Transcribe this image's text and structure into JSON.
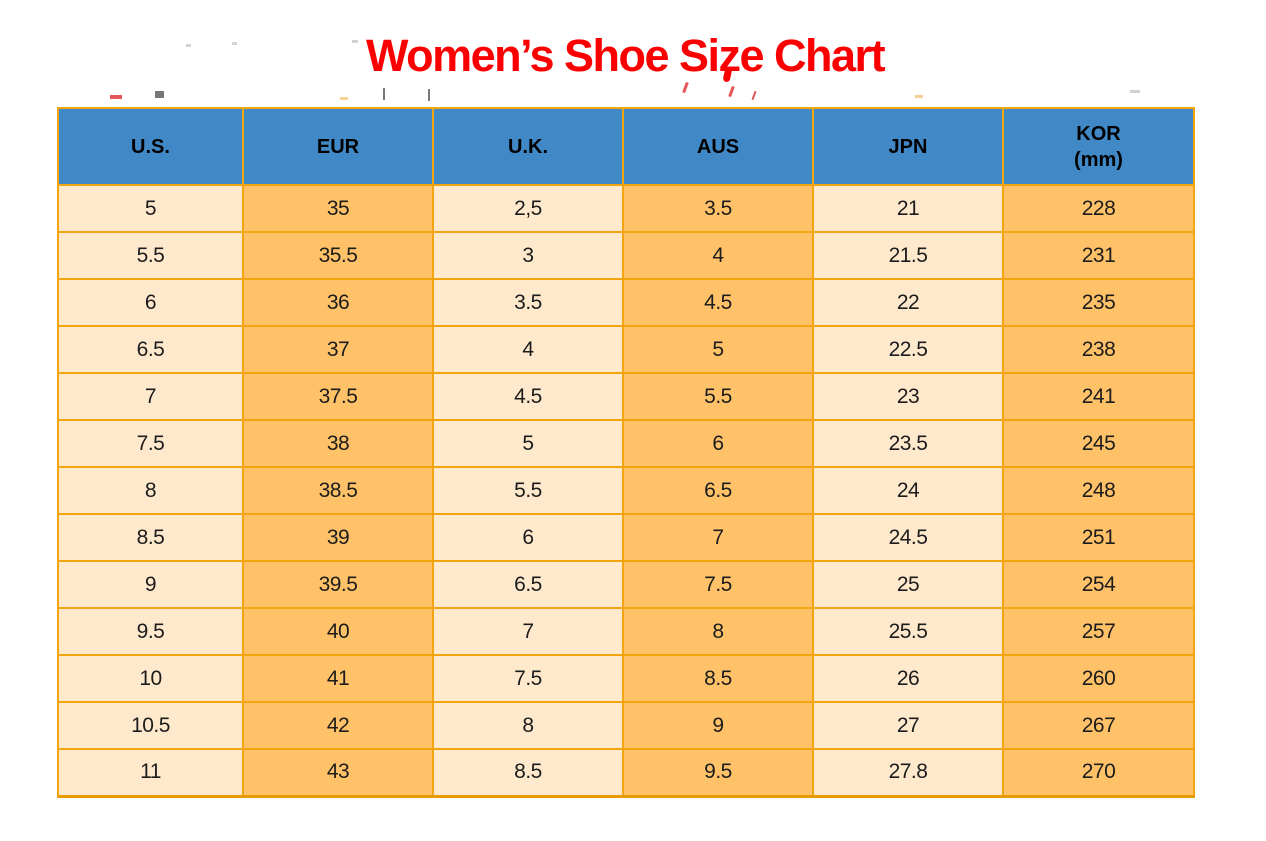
{
  "title": "Women’s Shoe Size Chart",
  "colors": {
    "header_bg": "#4189C6",
    "col_light": "#FFE9CD",
    "col_orange": "#FFC268",
    "border": "#F2A50F",
    "border_dark": "#E99B00",
    "title": "#FB0000"
  },
  "chart_data": {
    "type": "table",
    "title": "Women’s Shoe Size Chart",
    "columns": [
      {
        "label": "U.S.",
        "sub": ""
      },
      {
        "label": "EUR",
        "sub": ""
      },
      {
        "label": "U.K.",
        "sub": ""
      },
      {
        "label": "AUS",
        "sub": ""
      },
      {
        "label": "JPN",
        "sub": ""
      },
      {
        "label": "KOR",
        "sub": "(mm)"
      }
    ],
    "rows": [
      [
        "5",
        "35",
        "2,5",
        "3.5",
        "21",
        "228"
      ],
      [
        "5.5",
        "35.5",
        "3",
        "4",
        "21.5",
        "231"
      ],
      [
        "6",
        "36",
        "3.5",
        "4.5",
        "22",
        "235"
      ],
      [
        "6.5",
        "37",
        "4",
        "5",
        "22.5",
        "238"
      ],
      [
        "7",
        "37.5",
        "4.5",
        "5.5",
        "23",
        "241"
      ],
      [
        "7.5",
        "38",
        "5",
        "6",
        "23.5",
        "245"
      ],
      [
        "8",
        "38.5",
        "5.5",
        "6.5",
        "24",
        "248"
      ],
      [
        "8.5",
        "39",
        "6",
        "7",
        "24.5",
        "251"
      ],
      [
        "9",
        "39.5",
        "6.5",
        "7.5",
        "25",
        "254"
      ],
      [
        "9.5",
        "40",
        "7",
        "8",
        "25.5",
        "257"
      ],
      [
        "10",
        "41",
        "7.5",
        "8.5",
        "26",
        "260"
      ],
      [
        "10.5",
        "42",
        "8",
        "9",
        "27",
        "267"
      ],
      [
        "11",
        "43",
        "8.5",
        "9.5",
        "27.8",
        "270"
      ]
    ]
  }
}
